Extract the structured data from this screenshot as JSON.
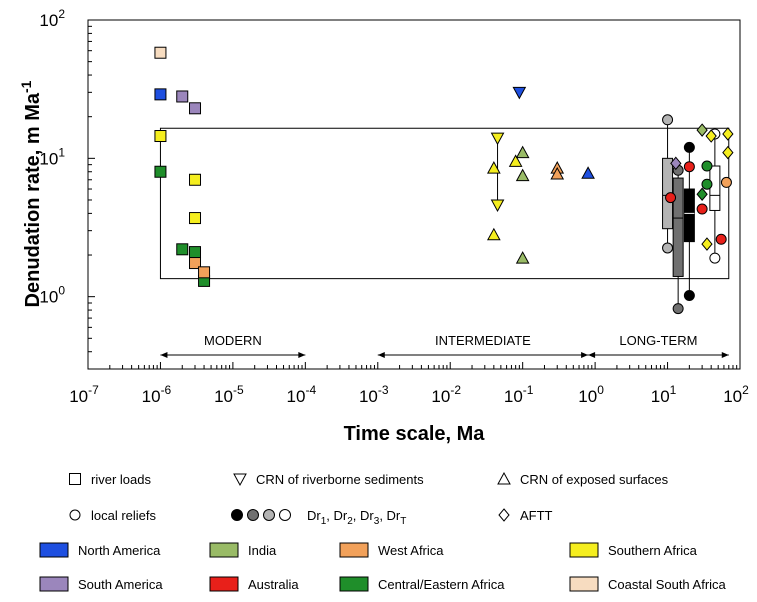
{
  "chart_data": {
    "type": "scatter",
    "xlabel": "Time scale, Ma",
    "ylabel": "Denudation rate, m Ma",
    "ylabel_sup": "-1",
    "x_scale": "log",
    "y_scale": "log",
    "xlim": [
      1e-07,
      100
    ],
    "ylim": [
      0.3,
      100
    ],
    "grid": false,
    "x_ticks": [
      {
        "base": "10",
        "exp": "-7",
        "v": 1e-07
      },
      {
        "base": "10",
        "exp": "-6",
        "v": 1e-06
      },
      {
        "base": "10",
        "exp": "-5",
        "v": 1e-05
      },
      {
        "base": "10",
        "exp": "-4",
        "v": 0.0001
      },
      {
        "base": "10",
        "exp": "-3",
        "v": 0.001
      },
      {
        "base": "10",
        "exp": "-2",
        "v": 0.01
      },
      {
        "base": "10",
        "exp": "-1",
        "v": 0.1
      },
      {
        "base": "10",
        "exp": "0",
        "v": 1
      },
      {
        "base": "10",
        "exp": "1",
        "v": 10
      },
      {
        "base": "10",
        "exp": "2",
        "v": 100
      }
    ],
    "y_ticks": [
      {
        "base": "10",
        "exp": "0",
        "v": 1
      },
      {
        "base": "10",
        "exp": "1",
        "v": 10
      },
      {
        "base": "10",
        "exp": "2",
        "v": 100
      }
    ],
    "envelope": {
      "x": [
        1e-06,
        70
      ],
      "y": [
        1.35,
        16.5
      ]
    },
    "periods": [
      {
        "label": "MODERN",
        "x": [
          1e-06,
          0.0001
        ]
      },
      {
        "label": "INTERMEDIATE",
        "x": [
          0.001,
          0.8
        ]
      },
      {
        "label": "LONG-TERM",
        "x": [
          0.8,
          70
        ]
      }
    ],
    "colors": {
      "north_america": "#1e4fe0",
      "india": "#99bb66",
      "west_africa": "#f2a15a",
      "southern_africa": "#f5ee1f",
      "south_america": "#9b86bc",
      "australia": "#e8201a",
      "central_eastern_africa": "#1f8e2a",
      "coastal_south_africa": "#f7dcc0",
      "dr1": "#000000",
      "dr2": "#707070",
      "dr3": "#b4b4b4",
      "drT": "#ffffff"
    },
    "series": [
      {
        "marker": "square",
        "region": "coastal_south_africa",
        "points": [
          [
            1e-06,
            58
          ]
        ]
      },
      {
        "marker": "square",
        "region": "north_america",
        "points": [
          [
            1e-06,
            29
          ]
        ]
      },
      {
        "marker": "square",
        "region": "south_america",
        "points": [
          [
            2e-06,
            28
          ],
          [
            3e-06,
            23
          ]
        ]
      },
      {
        "marker": "square",
        "region": "southern_africa",
        "points": [
          [
            1e-06,
            14.5
          ],
          [
            3e-06,
            7
          ],
          [
            3e-06,
            3.7
          ]
        ]
      },
      {
        "marker": "square",
        "region": "central_eastern_africa",
        "points": [
          [
            1e-06,
            8
          ],
          [
            2e-06,
            2.2
          ],
          [
            3e-06,
            2.1
          ],
          [
            4e-06,
            1.3
          ]
        ]
      },
      {
        "marker": "square",
        "region": "west_africa",
        "points": [
          [
            3e-06,
            1.75
          ],
          [
            4e-06,
            1.5
          ]
        ]
      },
      {
        "marker": "triangle-down",
        "region": "north_america",
        "points": [
          [
            0.09,
            30
          ]
        ]
      },
      {
        "marker": "triangle-down",
        "region": "southern_africa",
        "points": [
          [
            0.045,
            14
          ],
          [
            0.045,
            4.6
          ]
        ]
      },
      {
        "marker": "triangle-up",
        "region": "southern_africa",
        "points": [
          [
            0.04,
            8.5
          ],
          [
            0.04,
            2.8
          ],
          [
            0.08,
            9.5
          ]
        ]
      },
      {
        "marker": "triangle-up",
        "region": "india",
        "points": [
          [
            0.1,
            11
          ],
          [
            0.1,
            7.5
          ],
          [
            0.1,
            1.9
          ]
        ]
      },
      {
        "marker": "triangle-up",
        "region": "west_africa",
        "points": [
          [
            0.3,
            8.5
          ],
          [
            0.3,
            7.7
          ]
        ]
      },
      {
        "marker": "triangle-up",
        "region": "north_america",
        "points": [
          [
            0.8,
            7.8
          ]
        ]
      },
      {
        "marker": "circle",
        "region": "dr3",
        "points": [
          [
            10,
            19
          ],
          [
            10,
            2.25
          ]
        ]
      },
      {
        "marker": "circle",
        "region": "dr2",
        "points": [
          [
            14,
            8.2
          ],
          [
            14,
            0.82
          ]
        ]
      },
      {
        "marker": "circle",
        "region": "dr1",
        "points": [
          [
            20,
            12
          ],
          [
            20,
            1.02
          ]
        ]
      },
      {
        "marker": "circle",
        "region": "drT",
        "points": [
          [
            45,
            15
          ],
          [
            45,
            1.9
          ]
        ]
      },
      {
        "marker": "circle",
        "region": "australia",
        "points": [
          [
            11,
            5.2
          ],
          [
            20,
            8.7
          ],
          [
            30,
            4.3
          ],
          [
            55,
            2.6
          ]
        ]
      },
      {
        "marker": "circle",
        "region": "central_eastern_africa",
        "points": [
          [
            35,
            8.8
          ],
          [
            35,
            6.5
          ]
        ]
      },
      {
        "marker": "circle",
        "region": "west_africa",
        "points": [
          [
            65,
            6.7
          ]
        ]
      },
      {
        "marker": "diamond",
        "region": "india",
        "points": [
          [
            30,
            16
          ]
        ]
      },
      {
        "marker": "diamond",
        "region": "southern_africa",
        "points": [
          [
            40,
            14.5
          ],
          [
            68,
            15
          ],
          [
            68,
            11
          ],
          [
            35,
            2.4
          ]
        ]
      },
      {
        "marker": "diamond",
        "region": "south_america",
        "points": [
          [
            13,
            9.2
          ]
        ]
      },
      {
        "marker": "diamond",
        "region": "central_eastern_africa",
        "points": [
          [
            30,
            5.5
          ]
        ]
      }
    ],
    "range_lines": [
      {
        "x": 0.045,
        "y": [
          4.6,
          14
        ]
      },
      {
        "x": 10,
        "y": [
          2.25,
          19
        ]
      },
      {
        "x": 14,
        "y": [
          0.82,
          8.2
        ]
      },
      {
        "x": 20,
        "y": [
          1.02,
          12
        ]
      },
      {
        "x": 45,
        "y": [
          1.9,
          15
        ]
      }
    ],
    "boxes": [
      {
        "x": 10,
        "q1": 3.1,
        "q3": 10,
        "median": 5.4,
        "region": "dr3"
      },
      {
        "x": 14,
        "q1": 1.4,
        "q3": 7.2,
        "median": 3.7,
        "region": "dr2"
      },
      {
        "x": 20,
        "q1": 2.5,
        "q3": 6.0,
        "median": 4.0,
        "region": "dr1"
      },
      {
        "x": 45,
        "q1": 4.2,
        "q3": 8.8,
        "median": 5.4,
        "region": "drT"
      }
    ]
  },
  "legend": {
    "symbols": [
      {
        "marker": "square",
        "label": "river loads"
      },
      {
        "marker": "triangle-down",
        "label": "CRN of riverborne sediments"
      },
      {
        "marker": "triangle-up",
        "label": "CRN of exposed surfaces"
      },
      {
        "marker": "circle",
        "label": "local reliefs"
      },
      {
        "marker": "circles-dr",
        "label": "Dr"
      },
      {
        "marker": "diamond",
        "label": "AFTT"
      }
    ],
    "dr_items": [
      {
        "base": "Dr",
        "sub": "1",
        "sep": ", "
      },
      {
        "base": "Dr",
        "sub": "2",
        "sep": ", "
      },
      {
        "base": "Dr",
        "sub": "3",
        "sep": ", "
      },
      {
        "base": "Dr",
        "sub": "T",
        "sep": ""
      }
    ],
    "regions": [
      {
        "key": "north_america",
        "label": "North America"
      },
      {
        "key": "india",
        "label": "India"
      },
      {
        "key": "west_africa",
        "label": "West Africa"
      },
      {
        "key": "southern_africa",
        "label": "Southern Africa"
      },
      {
        "key": "south_america",
        "label": "South America"
      },
      {
        "key": "australia",
        "label": "Australia"
      },
      {
        "key": "central_eastern_africa",
        "label": "Central/Eastern Africa"
      },
      {
        "key": "coastal_south_africa",
        "label": "Coastal South Africa"
      }
    ]
  }
}
